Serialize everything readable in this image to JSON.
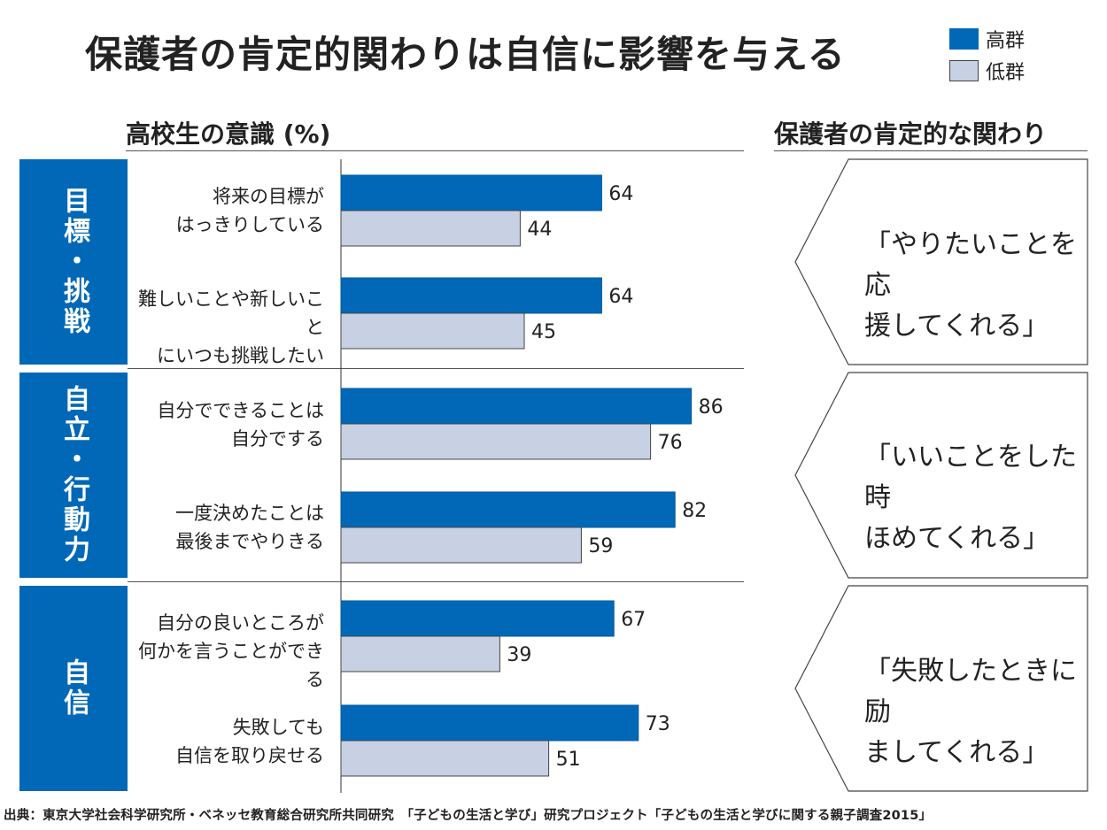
{
  "title": "保護者の肯定的関わりは自信に影響を与える",
  "legend": {
    "high": "高群",
    "low": "低群"
  },
  "colors": {
    "high": "#0068b7",
    "low": "#c8d0e4",
    "category": "#0068b7"
  },
  "left_header": "高校生の意識 (%)",
  "right_header": "保護者の肯定的な関わり",
  "categories": [
    {
      "label": "目標・挑戦",
      "quote": "「やりたいことを応\n援してくれる」"
    },
    {
      "label": "自立・行動力",
      "quote": "「いいことをした時\nほめてくれる」"
    },
    {
      "label": "自信",
      "quote": "「失敗したときに励\nましてくれる」"
    }
  ],
  "chart_data": {
    "type": "bar",
    "orientation": "horizontal",
    "categories": [
      "将来の目標が\nはっきりしている",
      "難しいことや新しいこと\nにいつも挑戦したい",
      "自分でできることは\n自分でする",
      "一度決めたことは\n最後までやりきる",
      "自分の良いところが\n何かを言うことができる",
      "失敗しても\n自信を取り戻せる"
    ],
    "series": [
      {
        "name": "高群",
        "values": [
          64,
          64,
          86,
          82,
          67,
          73
        ]
      },
      {
        "name": "低群",
        "values": [
          44,
          45,
          76,
          59,
          39,
          51
        ]
      }
    ],
    "title": "高校生の意識 (%)",
    "xlim": [
      0,
      100
    ]
  },
  "footnote": "出典：東京大学社会科学研究所・ベネッセ教育総合研究所共同研究　「子どもの生活と学び」研究プロジェクト「子どもの生活と学びに関する親子調査2015」"
}
